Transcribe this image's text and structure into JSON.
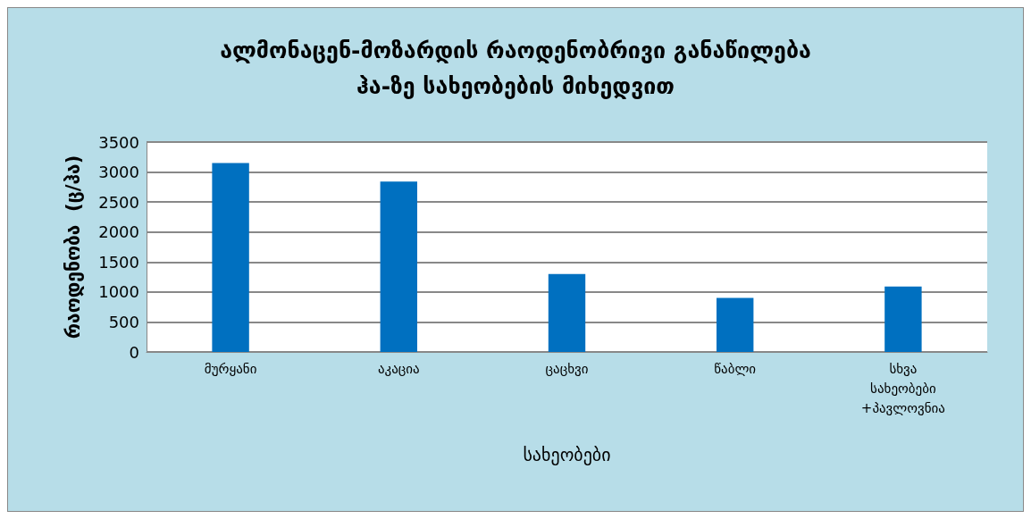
{
  "chart_data": {
    "type": "bar",
    "title": "ალმონაცენ-მოზარდის რაოდენობრივი განაწილება\nჰა-ზე სახეობების მიხედვით",
    "xlabel": "სახეობები",
    "ylabel": "რაოდენობა  (ც/ჰა)",
    "categories": [
      "მურყანი",
      "აკაცია",
      "ცაცხვი",
      "წაბლი",
      "სხვა\nსახეობები\n+პავლოვნია"
    ],
    "values": [
      3150,
      2840,
      1300,
      900,
      1090
    ],
    "color": "#0070c0",
    "ylim": [
      0,
      3500
    ],
    "yticks": [
      0,
      500,
      1000,
      1500,
      2000,
      2500,
      3000,
      3500
    ],
    "grid": "y"
  }
}
